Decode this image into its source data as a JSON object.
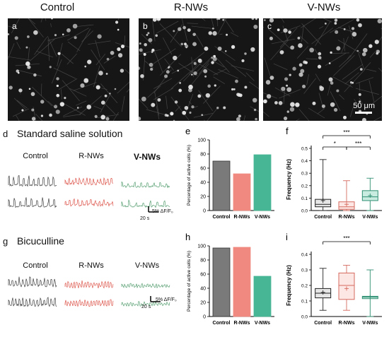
{
  "columns": [
    "Control",
    "R-NWs",
    "V-NWs"
  ],
  "micrographs": [
    {
      "letter": "a"
    },
    {
      "letter": "b"
    },
    {
      "letter": "c"
    }
  ],
  "scalebar_micro": "50 μm",
  "row_d": {
    "letter": "d",
    "title": "Standard saline solution",
    "trace_labels": [
      "Control",
      "R-NWs",
      "V-NWs"
    ],
    "scale_y": "5% ΔF/F₀",
    "scale_x": "20 s"
  },
  "row_g": {
    "letter": "g",
    "title": "Bicuculline",
    "trace_labels": [
      "Control",
      "R-NWs",
      "V-NWs"
    ],
    "scale_y": "5% ΔF/F₀",
    "scale_x": "20 s"
  },
  "colors": {
    "control": "#7a7a7a",
    "rnws": "#f08a80",
    "vnws": "#47b694",
    "control_trace": "#222222",
    "rnws_trace": "#d73a2e",
    "vnws_trace": "#3b8f5a"
  },
  "chart_data": [
    {
      "panel": "e",
      "type": "bar",
      "categories": [
        "Control",
        "R-NWs",
        "V-NWs"
      ],
      "values": [
        70,
        52,
        79
      ],
      "ylabel": "Percentage of active cells (%)",
      "ylim": [
        0,
        100
      ]
    },
    {
      "panel": "f",
      "type": "box",
      "categories": [
        "Control",
        "R-NWs",
        "V-NWs"
      ],
      "ylabel": "Frequency (Hz)",
      "yticks": [
        "0.0",
        "0.1",
        "0.2",
        "0.3",
        "0.4",
        "0.5"
      ],
      "ylim": [
        0,
        0.5
      ],
      "boxes": [
        {
          "min": 0.0,
          "q1": 0.03,
          "median": 0.05,
          "q3": 0.09,
          "max": 0.41,
          "mean": 0.08
        },
        {
          "min": 0.0,
          "q1": 0.01,
          "median": 0.03,
          "q3": 0.07,
          "max": 0.24,
          "mean": 0.05
        },
        {
          "min": 0.0,
          "q1": 0.08,
          "median": 0.11,
          "q3": 0.16,
          "max": 0.26,
          "mean": 0.12
        }
      ],
      "significance": [
        {
          "pair": [
            "Control",
            "R-NWs"
          ],
          "label": "*"
        },
        {
          "pair": [
            "R-NWs",
            "V-NWs"
          ],
          "label": "***"
        },
        {
          "pair": [
            "Control",
            "V-NWs"
          ],
          "label": "***"
        }
      ]
    },
    {
      "panel": "h",
      "type": "bar",
      "categories": [
        "Control",
        "R-NWs",
        "V-NWs"
      ],
      "values": [
        97,
        98,
        57
      ],
      "ylabel": "Percentage of active cells (%)",
      "ylim": [
        0,
        100
      ]
    },
    {
      "panel": "i",
      "type": "box",
      "categories": [
        "Control",
        "R-NWs",
        "V-NWs"
      ],
      "ylabel": "Frequency (Hz)",
      "yticks": [
        "0.0",
        "0.1",
        "0.2",
        "0.3",
        "0.4"
      ],
      "ylim": [
        0,
        0.4
      ],
      "boxes": [
        {
          "min": 0.04,
          "q1": 0.12,
          "median": 0.15,
          "q3": 0.18,
          "max": 0.31,
          "mean": 0.155
        },
        {
          "min": 0.04,
          "q1": 0.11,
          "median": 0.2,
          "q3": 0.28,
          "max": 0.33,
          "mean": 0.18
        },
        {
          "min": 0.0,
          "q1": 0.115,
          "median": 0.125,
          "q3": 0.13,
          "max": 0.3,
          "mean": 0.125
        }
      ],
      "significance": [
        {
          "pair": [
            "Control",
            "V-NWs"
          ],
          "label": "***"
        }
      ]
    }
  ]
}
